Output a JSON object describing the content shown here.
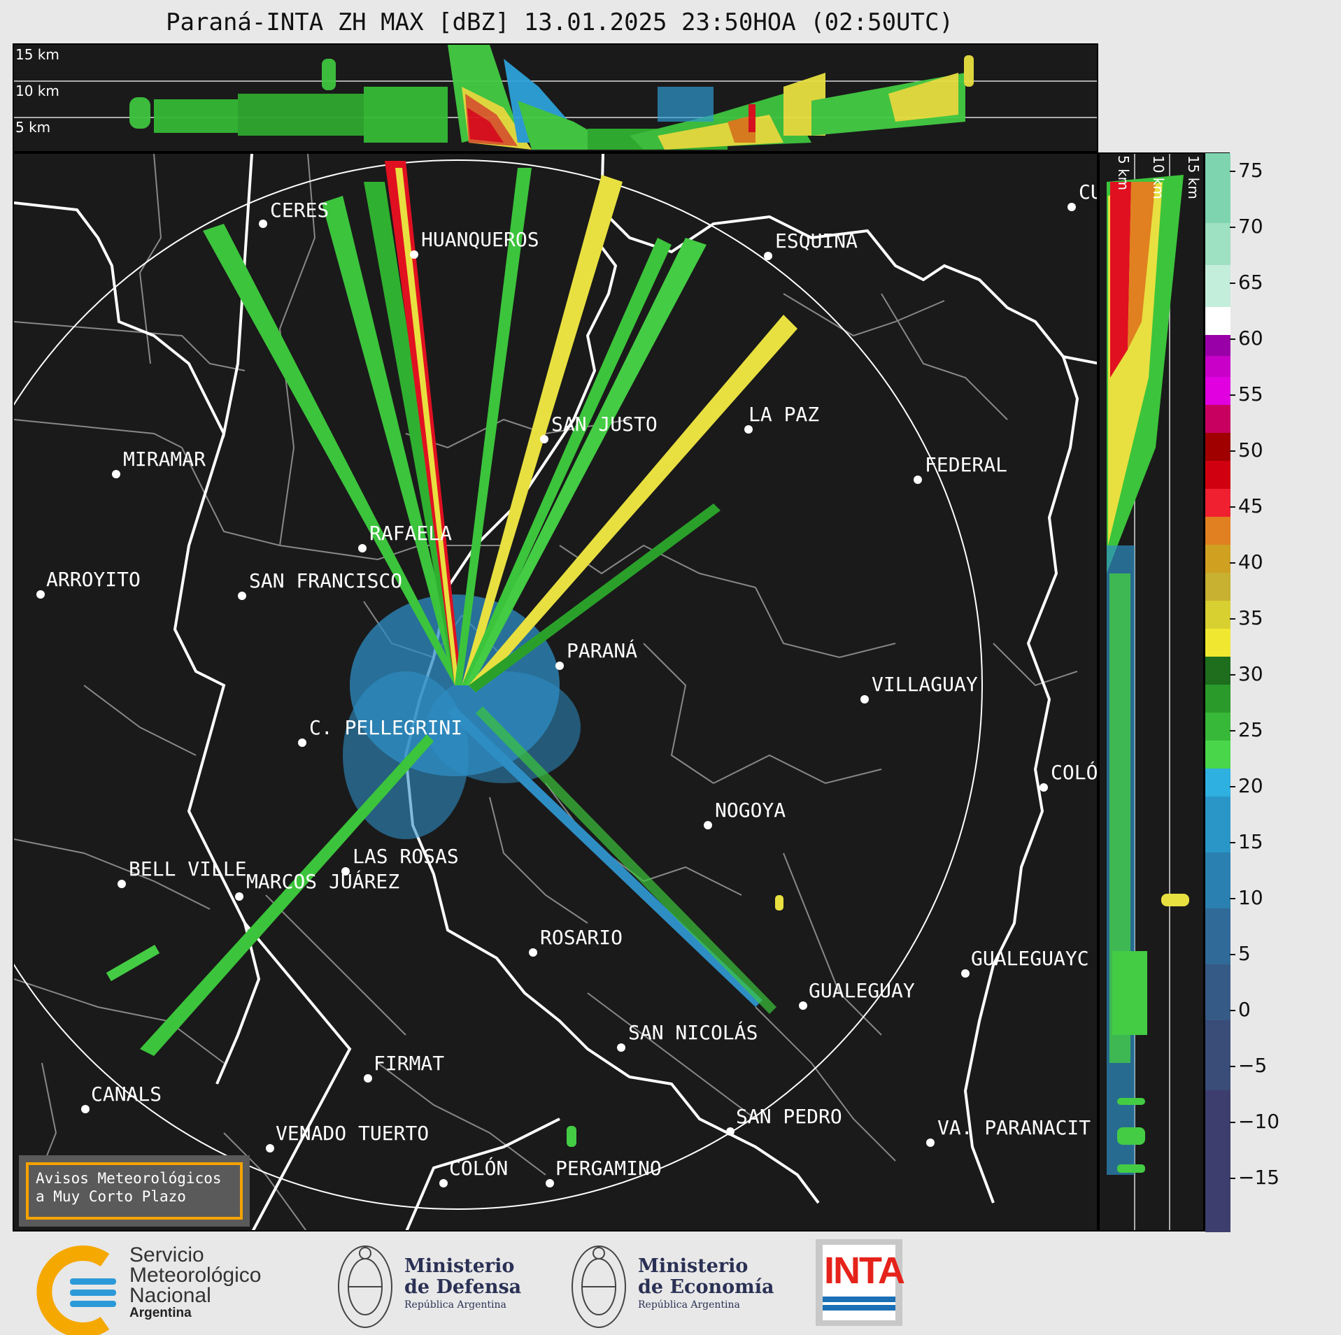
{
  "title": "Paraná-INTA ZH MAX [dBZ] 13.01.2025 23:50HOA (02:50UTC)",
  "height_labels": [
    "15 km",
    "10 km",
    "5 km"
  ],
  "cities": [
    {
      "name": "CERES"
    },
    {
      "name": "HUANQUEROS"
    },
    {
      "name": "ESQUINA"
    },
    {
      "name": "CU"
    },
    {
      "name": "SAN JUSTO"
    },
    {
      "name": "LA PAZ"
    },
    {
      "name": "MIRAMAR"
    },
    {
      "name": "FEDERAL"
    },
    {
      "name": "RAFAELA"
    },
    {
      "name": "ARROYITO"
    },
    {
      "name": "SAN FRANCISCO"
    },
    {
      "name": "PARANÁ"
    },
    {
      "name": "VILLAGUAY"
    },
    {
      "name": "C. PELLEGRINI"
    },
    {
      "name": "COLÓ"
    },
    {
      "name": "NOGOYA"
    },
    {
      "name": "LAS ROSAS"
    },
    {
      "name": "BELL VILLE"
    },
    {
      "name": "MARCOS JUÁREZ"
    },
    {
      "name": "ROSARIO"
    },
    {
      "name": "GUALEGUAYC"
    },
    {
      "name": "GUALEGUAY"
    },
    {
      "name": "SAN NICOLÁS"
    },
    {
      "name": "FIRMAT"
    },
    {
      "name": "CANALS"
    },
    {
      "name": "SAN PEDRO"
    },
    {
      "name": "VENADO TUERTO"
    },
    {
      "name": "VA. PARANACIT"
    },
    {
      "name": "COLÓN"
    },
    {
      "name": "PERGAMINO"
    }
  ],
  "colorbar": {
    "unit": "dBZ",
    "ticks": [
      "75",
      "70",
      "65",
      "60",
      "55",
      "50",
      "45",
      "40",
      "35",
      "30",
      "25",
      "20",
      "15",
      "10",
      "5",
      "0",
      "−5",
      "−10",
      "−15"
    ]
  },
  "aviso": {
    "line1": "Avisos Meteorológicos",
    "line2": "a Muy Corto Plazo"
  },
  "logos": {
    "smn_line1": "Servicio",
    "smn_line2": "Meteorológico",
    "smn_line3": "Nacional",
    "smn_line4": "Argentina",
    "defensa_line1": "Ministerio",
    "defensa_line2": "de Defensa",
    "defensa_line3": "República Argentina",
    "economia_line1": "Ministerio",
    "economia_line2": "de Economía",
    "economia_line3": "República Argentina",
    "inta": "INTA"
  }
}
